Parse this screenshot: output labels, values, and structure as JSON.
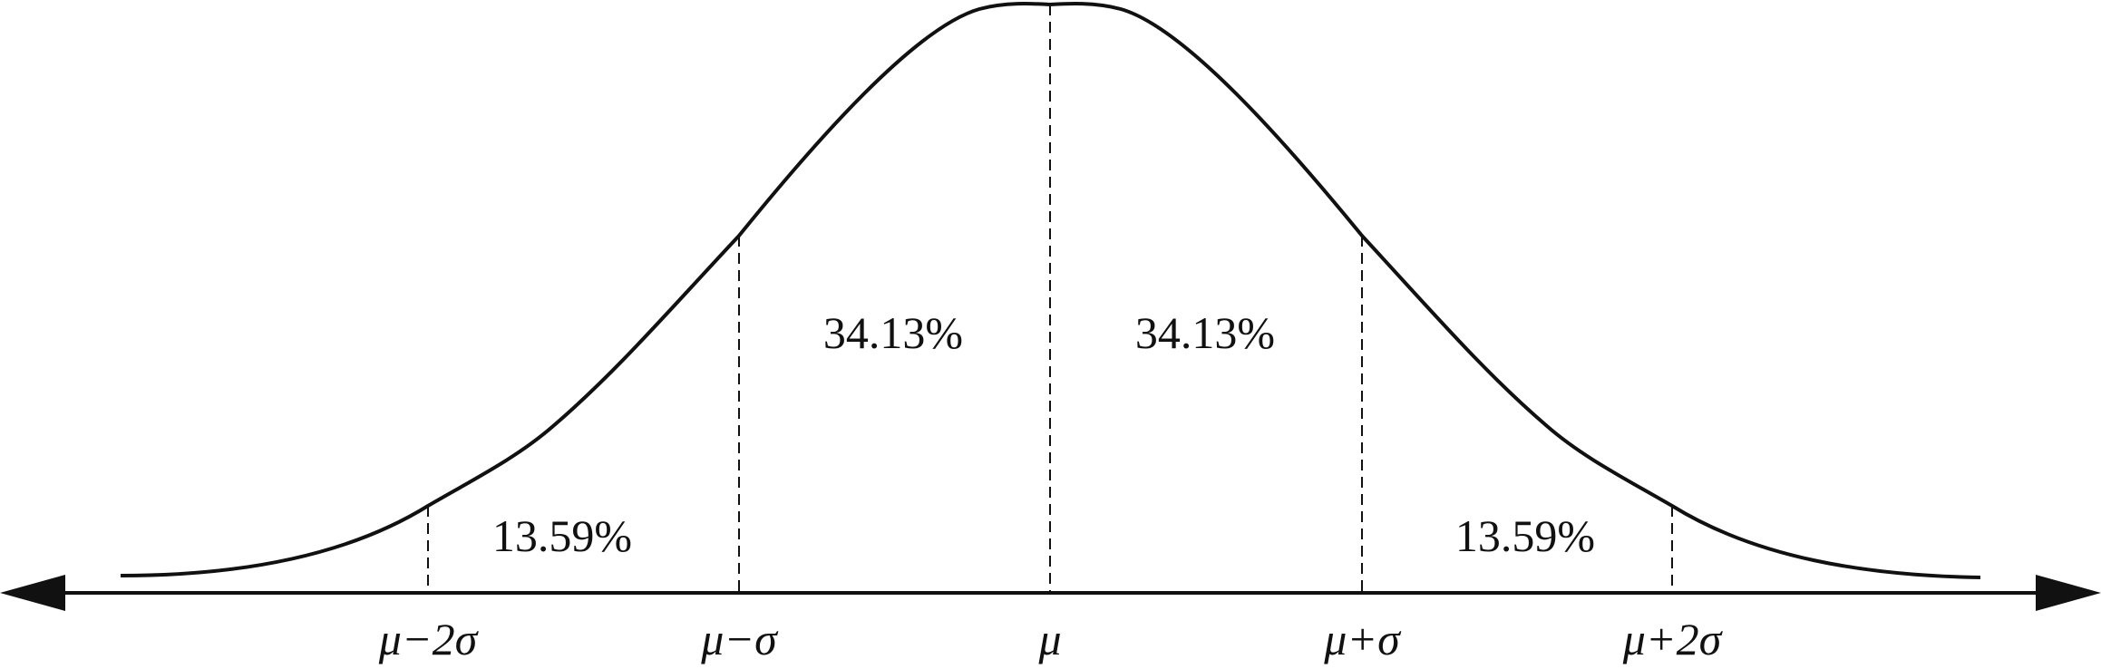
{
  "diagram": {
    "region_labels": {
      "left_center": "34.13%",
      "right_center": "34.13%",
      "left_tail": "13.59%",
      "right_tail": "13.59%"
    },
    "axis_labels": {
      "mu_minus_2sigma": "μ−2σ",
      "mu_minus_sigma": "μ−σ",
      "mu": "μ",
      "mu_plus_sigma": "μ+σ",
      "mu_plus_2sigma": "μ+2σ"
    },
    "colors": {
      "line": "#111111",
      "background": "#ffffff"
    }
  }
}
